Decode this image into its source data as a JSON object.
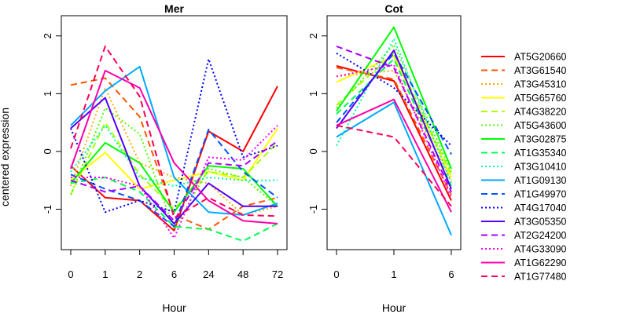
{
  "ylabel": "centered expression",
  "chart_data": [
    {
      "type": "line",
      "title": "Mer",
      "xlabel": "Hour",
      "ylabel": "centered expression",
      "categories": [
        "0",
        "1",
        "2",
        "6",
        "24",
        "48",
        "72"
      ],
      "ylim": [
        -1.7,
        2.35
      ],
      "yticks": [
        -1,
        0,
        1,
        2
      ],
      "grid": false,
      "series": [
        {
          "name": "AT5G20660",
          "color": "#ff0000",
          "dash": "solid",
          "values": [
            -0.25,
            -0.8,
            -0.85,
            -1.37,
            0.35,
            0.0,
            1.13
          ]
        },
        {
          "name": "AT3G61540",
          "color": "#ff5500",
          "dash": "dashed",
          "values": [
            1.15,
            1.27,
            0.6,
            -1.1,
            -1.35,
            -0.95,
            -0.8
          ]
        },
        {
          "name": "AT3G45310",
          "color": "#ffaa00",
          "dash": "dotted",
          "values": [
            -0.6,
            1.1,
            -0.2,
            -0.45,
            -0.55,
            -1.1,
            -0.95
          ]
        },
        {
          "name": "AT5G65760",
          "color": "#ffff00",
          "dash": "solid",
          "values": [
            -0.5,
            -0.02,
            -0.65,
            -0.5,
            -0.35,
            -0.5,
            0.4
          ]
        },
        {
          "name": "AT4G38220",
          "color": "#aaff00",
          "dash": "dashed",
          "values": [
            -0.75,
            0.5,
            -0.4,
            -1.0,
            -0.35,
            -0.45,
            0.15
          ]
        },
        {
          "name": "AT5G43600",
          "color": "#55ff00",
          "dash": "dotted",
          "values": [
            -0.75,
            0.75,
            0.3,
            -1.35,
            -0.3,
            -0.45,
            -0.95
          ]
        },
        {
          "name": "AT3G02875",
          "color": "#00ff00",
          "dash": "solid",
          "values": [
            -0.55,
            0.15,
            -0.2,
            -1.05,
            -0.25,
            -0.3,
            -0.95
          ]
        },
        {
          "name": "AT1G35340",
          "color": "#00ff55",
          "dash": "dashed",
          "values": [
            -0.55,
            -0.45,
            -0.7,
            -1.3,
            -1.35,
            -1.55,
            -1.25
          ]
        },
        {
          "name": "AT3G10410",
          "color": "#00ffaa",
          "dash": "dotted",
          "values": [
            -0.35,
            0.45,
            -0.45,
            -0.6,
            -0.45,
            -0.5,
            -0.5
          ]
        },
        {
          "name": "AT1G09130",
          "color": "#00aaff",
          "dash": "solid",
          "values": [
            0.45,
            1.05,
            1.47,
            -0.45,
            -1.05,
            -1.1,
            -0.9
          ]
        },
        {
          "name": "AT1G49970",
          "color": "#0055ff",
          "dash": "dashed",
          "values": [
            -0.4,
            -0.65,
            -0.85,
            -1.3,
            0.38,
            -0.35,
            -0.8
          ]
        },
        {
          "name": "AT4G17040",
          "color": "#0000ff",
          "dash": "dotted",
          "values": [
            0.4,
            -1.05,
            -0.85,
            -1.05,
            1.6,
            -0.1,
            0.1
          ]
        },
        {
          "name": "AT3G05350",
          "color": "#5500ff",
          "dash": "solid",
          "values": [
            0.4,
            0.93,
            -0.6,
            -1.25,
            -0.55,
            -0.95,
            -0.95
          ]
        },
        {
          "name": "AT2G24200",
          "color": "#aa00ff",
          "dash": "dashed",
          "values": [
            -0.5,
            -0.7,
            -0.6,
            -1.2,
            -0.2,
            -0.25,
            0.18
          ]
        },
        {
          "name": "AT4G33090",
          "color": "#ff00ff",
          "dash": "dotted",
          "values": [
            -0.45,
            -0.45,
            -0.6,
            -1.5,
            -0.1,
            -0.15,
            0.45
          ]
        },
        {
          "name": "AT1G62290",
          "color": "#ff00aa",
          "dash": "solid",
          "values": [
            -0.3,
            1.4,
            1.1,
            -0.2,
            -0.85,
            -1.2,
            -1.25
          ]
        },
        {
          "name": "AT1G77480",
          "color": "#ff0055",
          "dash": "dashed",
          "values": [
            0.05,
            1.82,
            0.95,
            -1.15,
            -0.8,
            -1.1,
            -1.12
          ]
        }
      ]
    },
    {
      "type": "line",
      "title": "Cot",
      "xlabel": "Hour",
      "categories": [
        "0",
        "1",
        "6"
      ],
      "ylim": [
        -1.7,
        2.35
      ],
      "yticks": [
        -1,
        0,
        1,
        2
      ],
      "grid": false,
      "series": [
        {
          "name": "AT5G20660",
          "color": "#ff0000",
          "dash": "solid",
          "values": [
            1.48,
            1.22,
            -0.85
          ]
        },
        {
          "name": "AT3G61540",
          "color": "#ff5500",
          "dash": "dashed",
          "values": [
            1.45,
            1.25,
            -0.75
          ]
        },
        {
          "name": "AT3G45310",
          "color": "#ffaa00",
          "dash": "dotted",
          "values": [
            1.3,
            1.4,
            -0.5
          ]
        },
        {
          "name": "AT5G65760",
          "color": "#ffff00",
          "dash": "solid",
          "values": [
            1.2,
            1.65,
            -0.45
          ]
        },
        {
          "name": "AT4G38220",
          "color": "#aaff00",
          "dash": "dashed",
          "values": [
            0.8,
            1.7,
            -0.4
          ]
        },
        {
          "name": "AT5G43600",
          "color": "#55ff00",
          "dash": "dotted",
          "values": [
            0.75,
            1.85,
            -0.35
          ]
        },
        {
          "name": "AT3G02875",
          "color": "#00ff00",
          "dash": "solid",
          "values": [
            0.7,
            2.15,
            -0.3
          ]
        },
        {
          "name": "AT1G35340",
          "color": "#00ff55",
          "dash": "dashed",
          "values": [
            0.65,
            1.6,
            -0.6
          ]
        },
        {
          "name": "AT3G10410",
          "color": "#00ffaa",
          "dash": "dotted",
          "values": [
            0.1,
            1.95,
            -0.55
          ]
        },
        {
          "name": "AT1G09130",
          "color": "#00aaff",
          "dash": "solid",
          "values": [
            0.25,
            0.85,
            -1.45
          ]
        },
        {
          "name": "AT1G49970",
          "color": "#0055ff",
          "dash": "dashed",
          "values": [
            0.5,
            1.7,
            -0.05
          ]
        },
        {
          "name": "AT4G17040",
          "color": "#0000ff",
          "dash": "dotted",
          "values": [
            1.7,
            1.1,
            0.1
          ]
        },
        {
          "name": "AT3G05350",
          "color": "#5500ff",
          "dash": "solid",
          "values": [
            0.4,
            1.75,
            -0.65
          ]
        },
        {
          "name": "AT2G24200",
          "color": "#aa00ff",
          "dash": "dashed",
          "values": [
            1.82,
            1.45,
            -0.7
          ]
        },
        {
          "name": "AT4G33090",
          "color": "#ff00ff",
          "dash": "dotted",
          "values": [
            1.3,
            1.5,
            -0.8
          ]
        },
        {
          "name": "AT1G62290",
          "color": "#ff00aa",
          "dash": "solid",
          "values": [
            0.45,
            0.9,
            -1.05
          ]
        },
        {
          "name": "AT1G77480",
          "color": "#ff0055",
          "dash": "dashed",
          "values": [
            0.45,
            0.25,
            -0.95
          ]
        }
      ]
    }
  ]
}
